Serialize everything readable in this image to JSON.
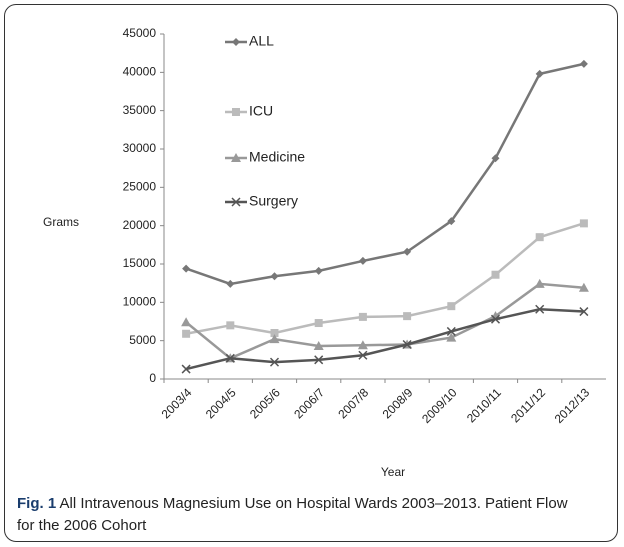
{
  "chart_data": {
    "type": "line",
    "ylabel": "Grams",
    "xlabel": "Year",
    "caption_label": "Fig. 1",
    "caption": "All Intravenous Magnesium Use on Hospital Wards 2003–2013. Patient Flow for the 2006 Cohort",
    "categories": [
      "2003/4",
      "2004/5",
      "2005/6",
      "2006/7",
      "2007/8",
      "2008/9",
      "2009/10",
      "2010/11",
      "2011/12",
      "2012/13"
    ],
    "series": [
      {
        "name": "ALL",
        "color": "#777777",
        "marker": "diamond",
        "values": [
          14400,
          12400,
          13400,
          14100,
          15400,
          16600,
          20600,
          28800,
          39800,
          41100
        ]
      },
      {
        "name": "ICU",
        "color": "#bbbbbb",
        "marker": "square",
        "values": [
          5900,
          7000,
          6000,
          7300,
          8100,
          8200,
          9500,
          13600,
          18500,
          20300
        ]
      },
      {
        "name": "Medicine",
        "color": "#999999",
        "marker": "triangle",
        "values": [
          7400,
          2700,
          5200,
          4300,
          4400,
          4500,
          5400,
          8200,
          12400,
          11900
        ]
      },
      {
        "name": "Surgery",
        "color": "#555555",
        "marker": "x",
        "values": [
          1300,
          2700,
          2200,
          2500,
          3100,
          4500,
          6200,
          7800,
          9100,
          8800
        ]
      }
    ],
    "ylim": [
      0,
      45000
    ],
    "yticks": [
      0,
      5000,
      10000,
      15000,
      20000,
      25000,
      30000,
      35000,
      40000,
      45000
    ],
    "grid": false
  }
}
